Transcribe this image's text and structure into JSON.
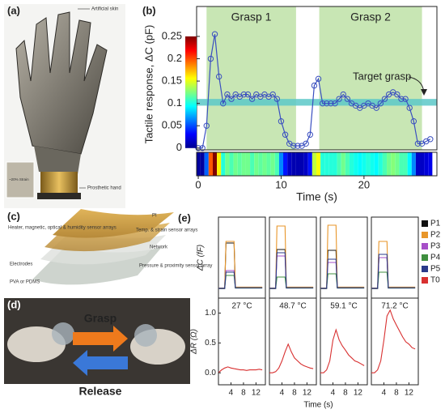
{
  "panels": {
    "a": {
      "label": "(a)",
      "annotations": [
        "Artificial skin",
        "Prosthetic hand",
        "~20% Strain"
      ]
    },
    "b": {
      "label": "(b)"
    },
    "c": {
      "label": "(c)",
      "annotations": [
        "PI",
        "Heater, magnetic, optical & humidity sensor arrays",
        "Temp. & strain sensor arrays",
        "Network",
        "Electrodes",
        "Pressure & proximity sensor array",
        "PVA or PDMS"
      ]
    },
    "d": {
      "label": "(d)",
      "annotations": [
        "Grasp",
        "Release"
      ]
    },
    "e": {
      "label": "(e)"
    }
  },
  "chart_data": [
    {
      "type": "line",
      "ylabel": "Tactile response, ΔC (pF)",
      "xlabel": "Time (s)",
      "color": "#3a4fc0",
      "x": [
        0,
        0.5,
        1,
        1.5,
        2,
        2.5,
        3,
        3.5,
        4,
        4.5,
        5,
        5.5,
        6,
        6.5,
        7,
        7.5,
        8,
        8.5,
        9,
        9.5,
        10,
        10.5,
        11,
        11.5,
        12,
        12.5,
        13,
        13.5,
        14,
        14.5,
        15,
        15.5,
        16,
        16.5,
        17,
        17.5,
        18,
        18.5,
        19,
        19.5,
        20,
        20.5,
        21,
        21.5,
        22,
        22.5,
        23,
        23.5,
        24,
        24.5,
        25,
        25.5,
        26,
        26.5,
        27,
        27.5,
        28
      ],
      "values": [
        0,
        0,
        0.05,
        0.2,
        0.255,
        0.16,
        0.1,
        0.12,
        0.11,
        0.12,
        0.115,
        0.12,
        0.12,
        0.11,
        0.12,
        0.115,
        0.12,
        0.115,
        0.12,
        0.11,
        0.06,
        0.03,
        0.01,
        0.005,
        0.005,
        0.005,
        0.01,
        0.03,
        0.14,
        0.155,
        0.1,
        0.1,
        0.1,
        0.1,
        0.11,
        0.12,
        0.11,
        0.1,
        0.095,
        0.09,
        0.095,
        0.1,
        0.095,
        0.09,
        0.1,
        0.11,
        0.12,
        0.125,
        0.12,
        0.11,
        0.11,
        0.09,
        0.06,
        0.01,
        0.01,
        0.015,
        0.02
      ],
      "xlim": [
        -0.2,
        28.8
      ],
      "xticks": [
        0,
        10,
        20
      ],
      "ylim": [
        -0.004,
        0.317
      ],
      "yticks": [
        0,
        0.05,
        0.1,
        0.15,
        0.2,
        0.25
      ],
      "shaded_regions": [
        [
          1.0,
          11.8
        ],
        [
          14.6,
          27.0
        ]
      ],
      "shaded_color": "#c8e6b4",
      "region_labels": [
        "Grasp 1",
        "Grasp 2"
      ],
      "target_band": [
        0.095,
        0.11
      ],
      "target_color": "#5cc8c8",
      "target_label": "Target grasp",
      "colorbar_range": [
        0,
        0.25
      ]
    },
    {
      "type": "line",
      "ylabel": "ΔC (fF)",
      "y2label": "ΔR (Ω)",
      "xlabel": "Time (s)",
      "annotation": "27 °C",
      "x": [
        0,
        2,
        2.4,
        5,
        5.4,
        14
      ],
      "xlim": [
        0,
        15
      ],
      "xticks": [
        4,
        8,
        12
      ],
      "ylim": [
        -50,
        450
      ],
      "y2lim": [
        -0.2,
        1.25
      ],
      "y2ticks": [
        {
          "value": 0,
          "label": "0.0"
        },
        0.5,
        {
          "value": 1,
          "label": "1.0"
        }
      ],
      "series": [
        {
          "name": "P1",
          "color": "#111111",
          "values": [
            10,
            10,
            290,
            290,
            15,
            15
          ]
        },
        {
          "name": "P2",
          "color": "#e8962a",
          "values": [
            12,
            12,
            300,
            300,
            18,
            18
          ]
        },
        {
          "name": "P3",
          "color": "#a64fc8",
          "values": [
            8,
            8,
            120,
            120,
            12,
            12
          ]
        },
        {
          "name": "P4",
          "color": "#3f8f3f",
          "values": [
            9,
            9,
            90,
            90,
            12,
            12
          ]
        },
        {
          "name": "P5",
          "color": "#2a3a8a",
          "values": [
            11,
            11,
            110,
            110,
            14,
            14
          ]
        },
        {
          "name": "T0",
          "color": "#d83030",
          "axis": "y2",
          "x": [
            0,
            1,
            2,
            3,
            4,
            5,
            6,
            7,
            8,
            9,
            10,
            11,
            12,
            13,
            14
          ],
          "values": [
            0,
            0.05,
            0.08,
            0.1,
            0.08,
            0.07,
            0.06,
            0.05,
            0.05,
            0.04,
            0.05,
            0.05,
            0.05,
            0.06,
            0.05
          ]
        }
      ]
    },
    {
      "type": "line",
      "annotation": "48.7 °C",
      "x": [
        0,
        2,
        2.4,
        5,
        5.4,
        14
      ],
      "xlim": [
        0,
        15
      ],
      "xticks": [
        4,
        8,
        12
      ],
      "ylim": [
        -50,
        450
      ],
      "y2lim": [
        -0.2,
        1.25
      ],
      "series": [
        {
          "name": "P1",
          "color": "#111111",
          "values": [
            10,
            10,
            250,
            250,
            15,
            15
          ]
        },
        {
          "name": "P2",
          "color": "#e8962a",
          "values": [
            12,
            12,
            395,
            395,
            18,
            18
          ]
        },
        {
          "name": "P3",
          "color": "#a64fc8",
          "values": [
            8,
            8,
            210,
            210,
            12,
            12
          ]
        },
        {
          "name": "P4",
          "color": "#3f8f3f",
          "values": [
            9,
            9,
            80,
            80,
            12,
            12
          ]
        },
        {
          "name": "P5",
          "color": "#2a3a8a",
          "values": [
            11,
            11,
            230,
            230,
            14,
            14
          ]
        },
        {
          "name": "T0",
          "color": "#d83030",
          "axis": "y2",
          "x": [
            0,
            1,
            2,
            3,
            4,
            5,
            6,
            7,
            8,
            9,
            10,
            11,
            12,
            13,
            14
          ],
          "values": [
            0,
            0,
            0.02,
            0.08,
            0.2,
            0.35,
            0.48,
            0.35,
            0.25,
            0.2,
            0.15,
            0.12,
            0.1,
            0.08,
            0.07
          ]
        }
      ]
    },
    {
      "type": "line",
      "annotation": "59.1 °C",
      "x": [
        0,
        2,
        2.4,
        5,
        5.4,
        14
      ],
      "xlim": [
        0,
        15
      ],
      "xticks": [
        4,
        8,
        12
      ],
      "ylim": [
        -50,
        450
      ],
      "y2lim": [
        -0.2,
        1.25
      ],
      "series": [
        {
          "name": "P1",
          "color": "#111111",
          "values": [
            10,
            10,
            245,
            245,
            15,
            15
          ]
        },
        {
          "name": "P2",
          "color": "#e8962a",
          "values": [
            12,
            12,
            400,
            400,
            18,
            18
          ]
        },
        {
          "name": "P3",
          "color": "#a64fc8",
          "values": [
            8,
            8,
            170,
            170,
            12,
            12
          ]
        },
        {
          "name": "P4",
          "color": "#3f8f3f",
          "values": [
            9,
            9,
            100,
            100,
            12,
            12
          ]
        },
        {
          "name": "P5",
          "color": "#2a3a8a",
          "values": [
            11,
            11,
            190,
            190,
            14,
            14
          ]
        },
        {
          "name": "T0",
          "color": "#d83030",
          "axis": "y2",
          "x": [
            0,
            1,
            2,
            3,
            4,
            5,
            6,
            7,
            8,
            9,
            10,
            11,
            12,
            13,
            14
          ],
          "values": [
            0,
            0,
            0.05,
            0.2,
            0.55,
            0.72,
            0.55,
            0.45,
            0.38,
            0.3,
            0.25,
            0.2,
            0.18,
            0.15,
            0.12
          ]
        }
      ]
    },
    {
      "type": "line",
      "annotation": "71.2 °C",
      "legend": "upper right",
      "x": [
        0,
        2,
        2.4,
        5,
        5.4,
        14
      ],
      "xlim": [
        0,
        15
      ],
      "xticks": [
        4,
        8,
        12
      ],
      "ylim": [
        -50,
        450
      ],
      "y2lim": [
        -0.2,
        1.25
      ],
      "series": [
        {
          "name": "P1",
          "color": "#111111",
          "values": [
            10,
            10,
            200,
            200,
            15,
            15
          ]
        },
        {
          "name": "P2",
          "color": "#e8962a",
          "values": [
            12,
            12,
            300,
            300,
            18,
            18
          ]
        },
        {
          "name": "P3",
          "color": "#a64fc8",
          "values": [
            8,
            8,
            200,
            200,
            12,
            12
          ]
        },
        {
          "name": "P4",
          "color": "#3f8f3f",
          "values": [
            9,
            9,
            110,
            110,
            12,
            12
          ]
        },
        {
          "name": "P5",
          "color": "#2a3a8a",
          "values": [
            11,
            11,
            220,
            220,
            14,
            14
          ]
        },
        {
          "name": "T0",
          "color": "#d83030",
          "axis": "y2",
          "x": [
            0,
            1,
            2,
            3,
            4,
            5,
            6,
            7,
            8,
            9,
            10,
            11,
            12,
            13,
            14
          ],
          "values": [
            0,
            0,
            0.05,
            0.2,
            0.55,
            0.95,
            1.05,
            0.9,
            0.8,
            0.7,
            0.6,
            0.52,
            0.48,
            0.42,
            0.4
          ]
        }
      ]
    }
  ]
}
